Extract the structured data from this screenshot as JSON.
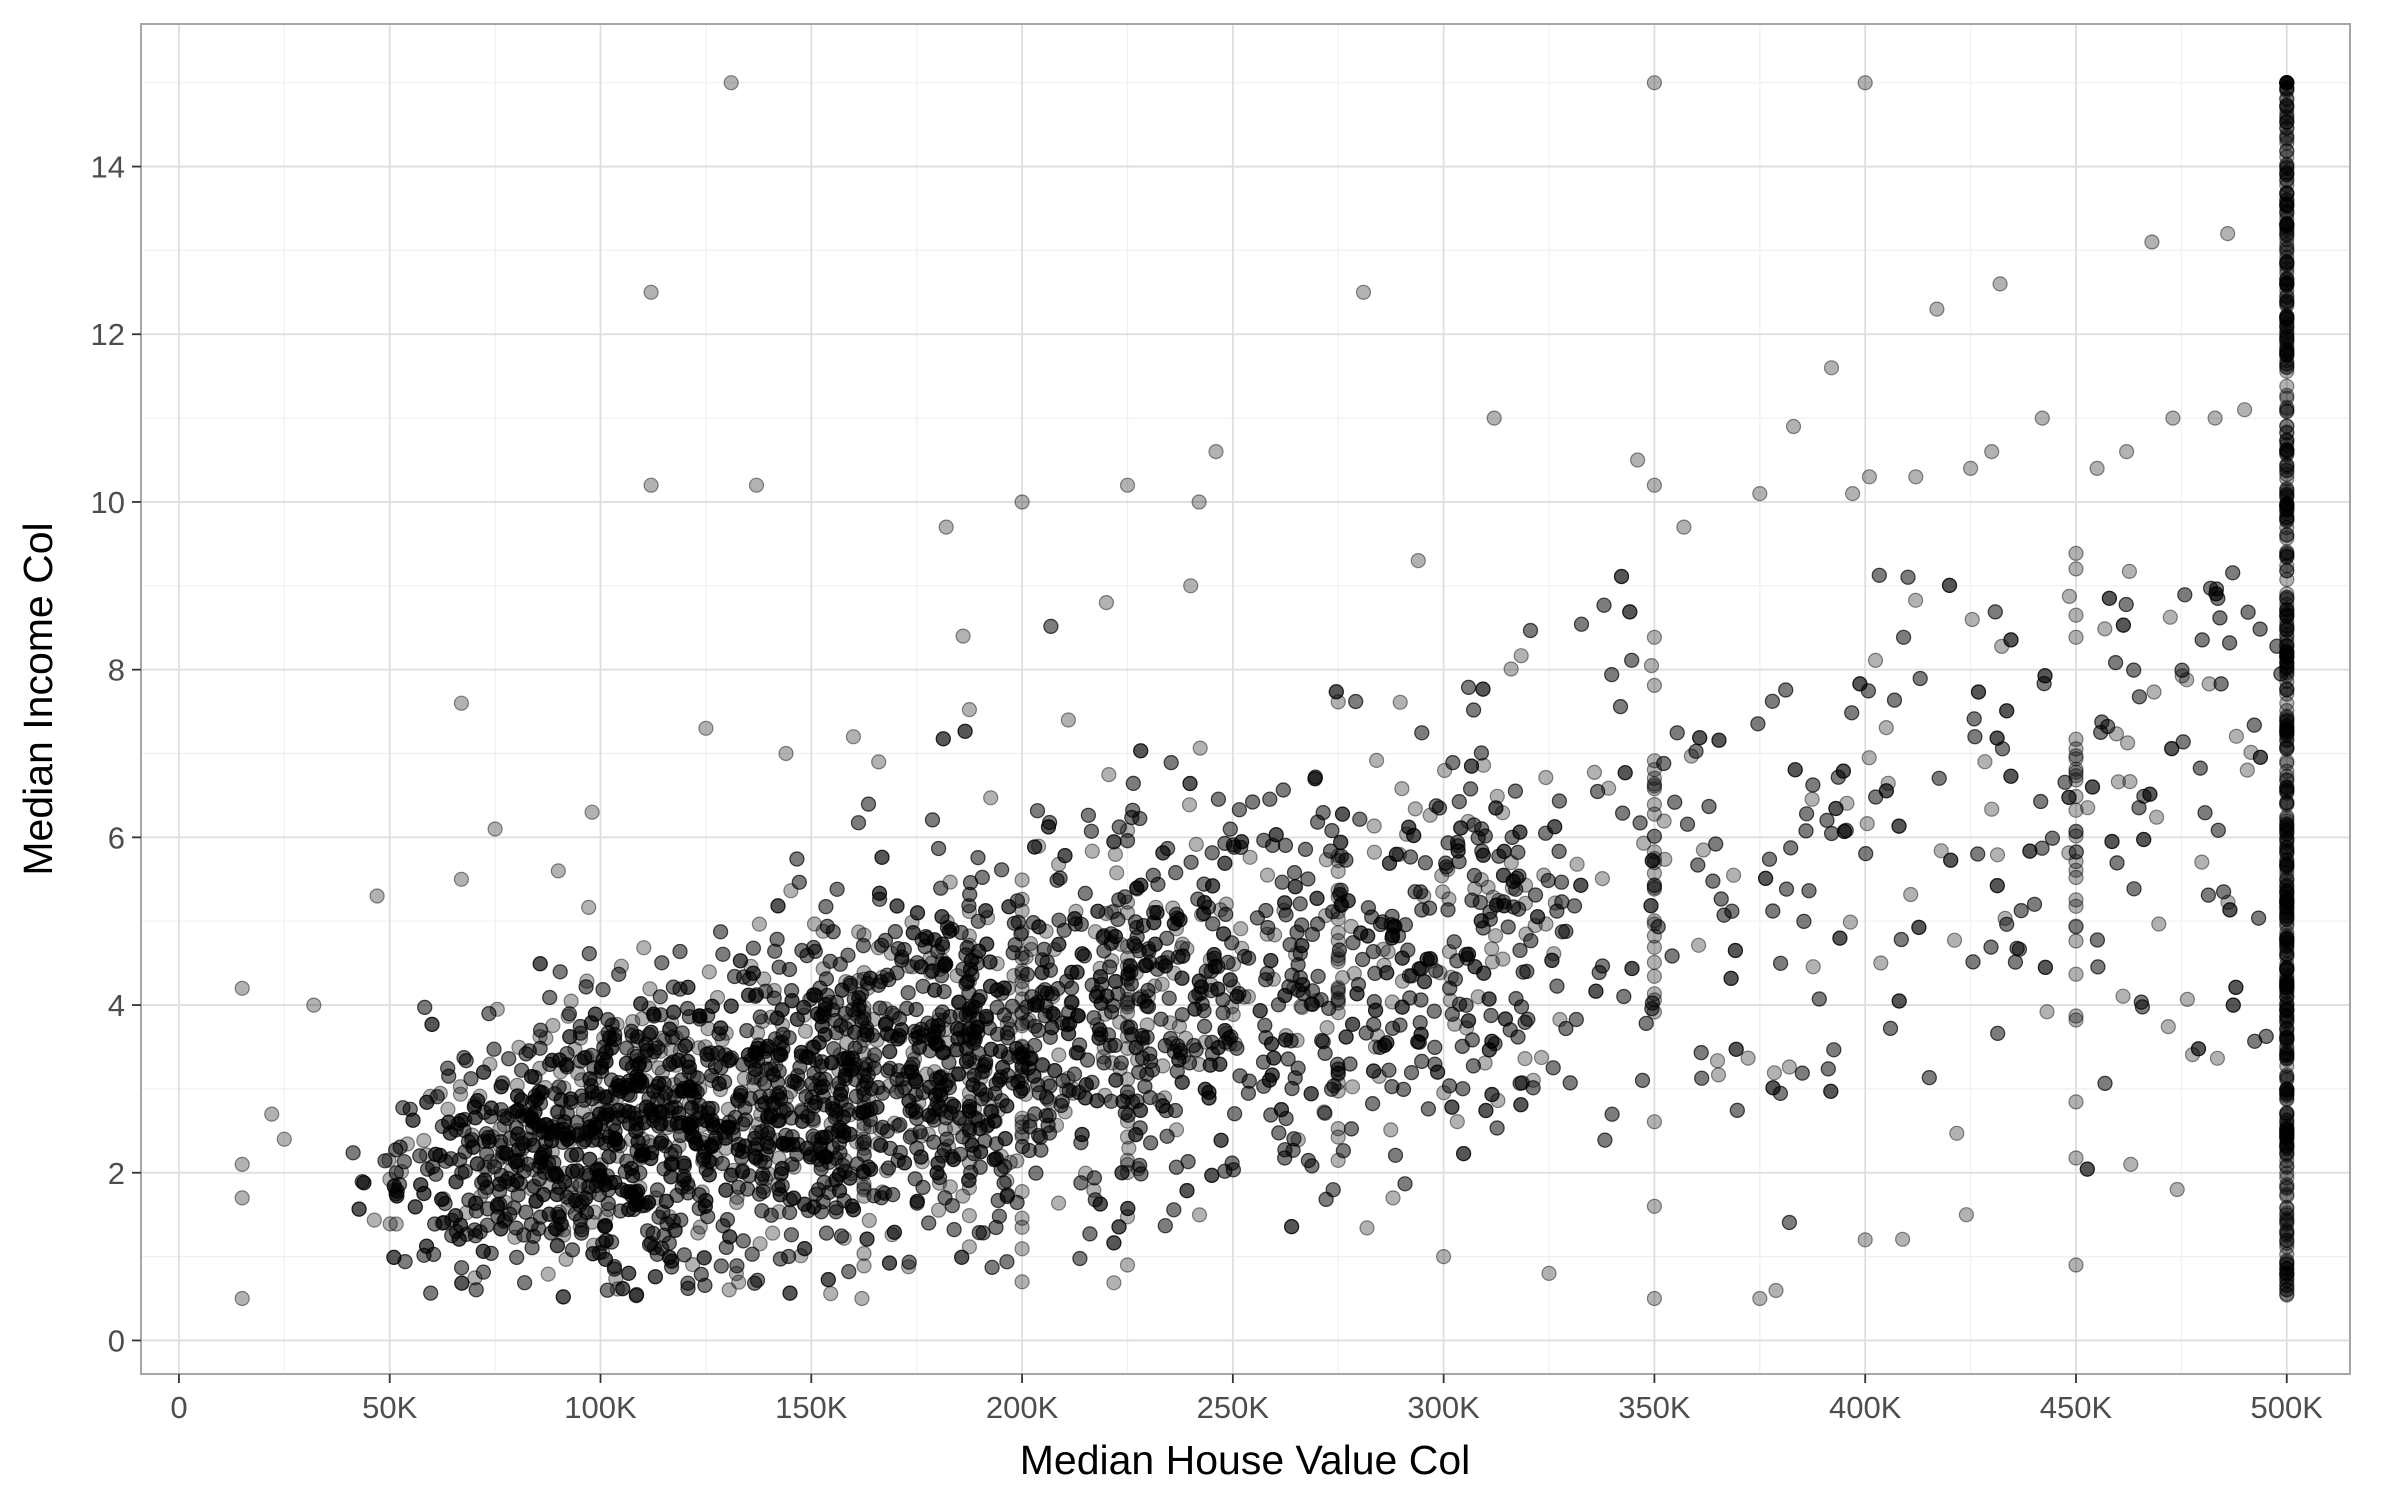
{
  "chart_data": {
    "type": "scatter",
    "title": "",
    "xlabel": "Median House Value Col",
    "ylabel": "Median Income Col",
    "xlim": [
      -9000,
      515000
    ],
    "ylim": [
      -0.4,
      15.7
    ],
    "x_ticks": [
      0,
      50000,
      100000,
      150000,
      200000,
      250000,
      300000,
      350000,
      400000,
      450000,
      500000
    ],
    "x_tick_labels": [
      "0",
      "50K",
      "100K",
      "150K",
      "200K",
      "250K",
      "300K",
      "350K",
      "400K",
      "450K",
      "500K"
    ],
    "y_ticks": [
      0,
      2,
      4,
      6,
      8,
      10,
      12,
      14
    ],
    "y_tick_labels": [
      "0",
      "2",
      "4",
      "6",
      "8",
      "10",
      "12",
      "14"
    ],
    "grid": true,
    "legend": "none",
    "point_color": "#000000",
    "point_opacity": 0.3,
    "series": [
      {
        "points": [
          [
            15000,
            4.2
          ],
          [
            15000,
            0.5
          ],
          [
            15000,
            1.7
          ],
          [
            15000,
            2.1
          ],
          [
            22000,
            2.7
          ],
          [
            25000,
            2.4
          ],
          [
            32000,
            4.0
          ],
          [
            47000,
            5.3
          ],
          [
            67000,
            7.6
          ],
          [
            67000,
            5.5
          ],
          [
            75000,
            6.1
          ],
          [
            90000,
            5.6
          ],
          [
            98000,
            6.3
          ],
          [
            112000,
            12.5
          ],
          [
            112000,
            10.2
          ],
          [
            131000,
            15.0
          ],
          [
            137000,
            10.2
          ],
          [
            125000,
            7.3
          ],
          [
            144000,
            7.0
          ],
          [
            182000,
            9.7
          ],
          [
            200000,
            10.0
          ],
          [
            225000,
            10.2
          ],
          [
            242000,
            10.0
          ],
          [
            246000,
            10.6
          ],
          [
            240000,
            9.0
          ],
          [
            220000,
            8.8
          ],
          [
            186000,
            8.4
          ],
          [
            160000,
            7.2
          ],
          [
            166000,
            6.9
          ],
          [
            211000,
            7.4
          ],
          [
            281000,
            12.5
          ],
          [
            294000,
            9.3
          ],
          [
            312000,
            11.0
          ],
          [
            350000,
            15.0
          ],
          [
            400000,
            15.0
          ],
          [
            346000,
            10.5
          ],
          [
            350000,
            10.2
          ],
          [
            357000,
            9.7
          ],
          [
            375000,
            10.1
          ],
          [
            383000,
            10.9
          ],
          [
            392000,
            11.6
          ],
          [
            397000,
            10.1
          ],
          [
            401000,
            10.3
          ],
          [
            412000,
            10.3
          ],
          [
            417000,
            12.3
          ],
          [
            425000,
            10.4
          ],
          [
            432000,
            12.6
          ],
          [
            430000,
            10.6
          ],
          [
            442000,
            11.0
          ],
          [
            455000,
            10.4
          ],
          [
            462000,
            10.6
          ],
          [
            468000,
            13.1
          ],
          [
            486000,
            13.2
          ],
          [
            483000,
            11.0
          ],
          [
            473000,
            11.0
          ],
          [
            490000,
            11.1
          ],
          [
            288000,
            1.7
          ],
          [
            300000,
            1.0
          ],
          [
            325000,
            0.8
          ],
          [
            375000,
            0.5
          ],
          [
            400000,
            1.2
          ],
          [
            424000,
            1.5
          ],
          [
            450000,
            0.9
          ],
          [
            463000,
            2.1
          ],
          [
            474000,
            1.8
          ],
          [
            350000,
            0.5
          ],
          [
            350000,
            1.6
          ],
          [
            162000,
            0.5
          ],
          [
            200000,
            0.7
          ],
          [
            225000,
            0.9
          ]
        ]
      }
    ]
  }
}
